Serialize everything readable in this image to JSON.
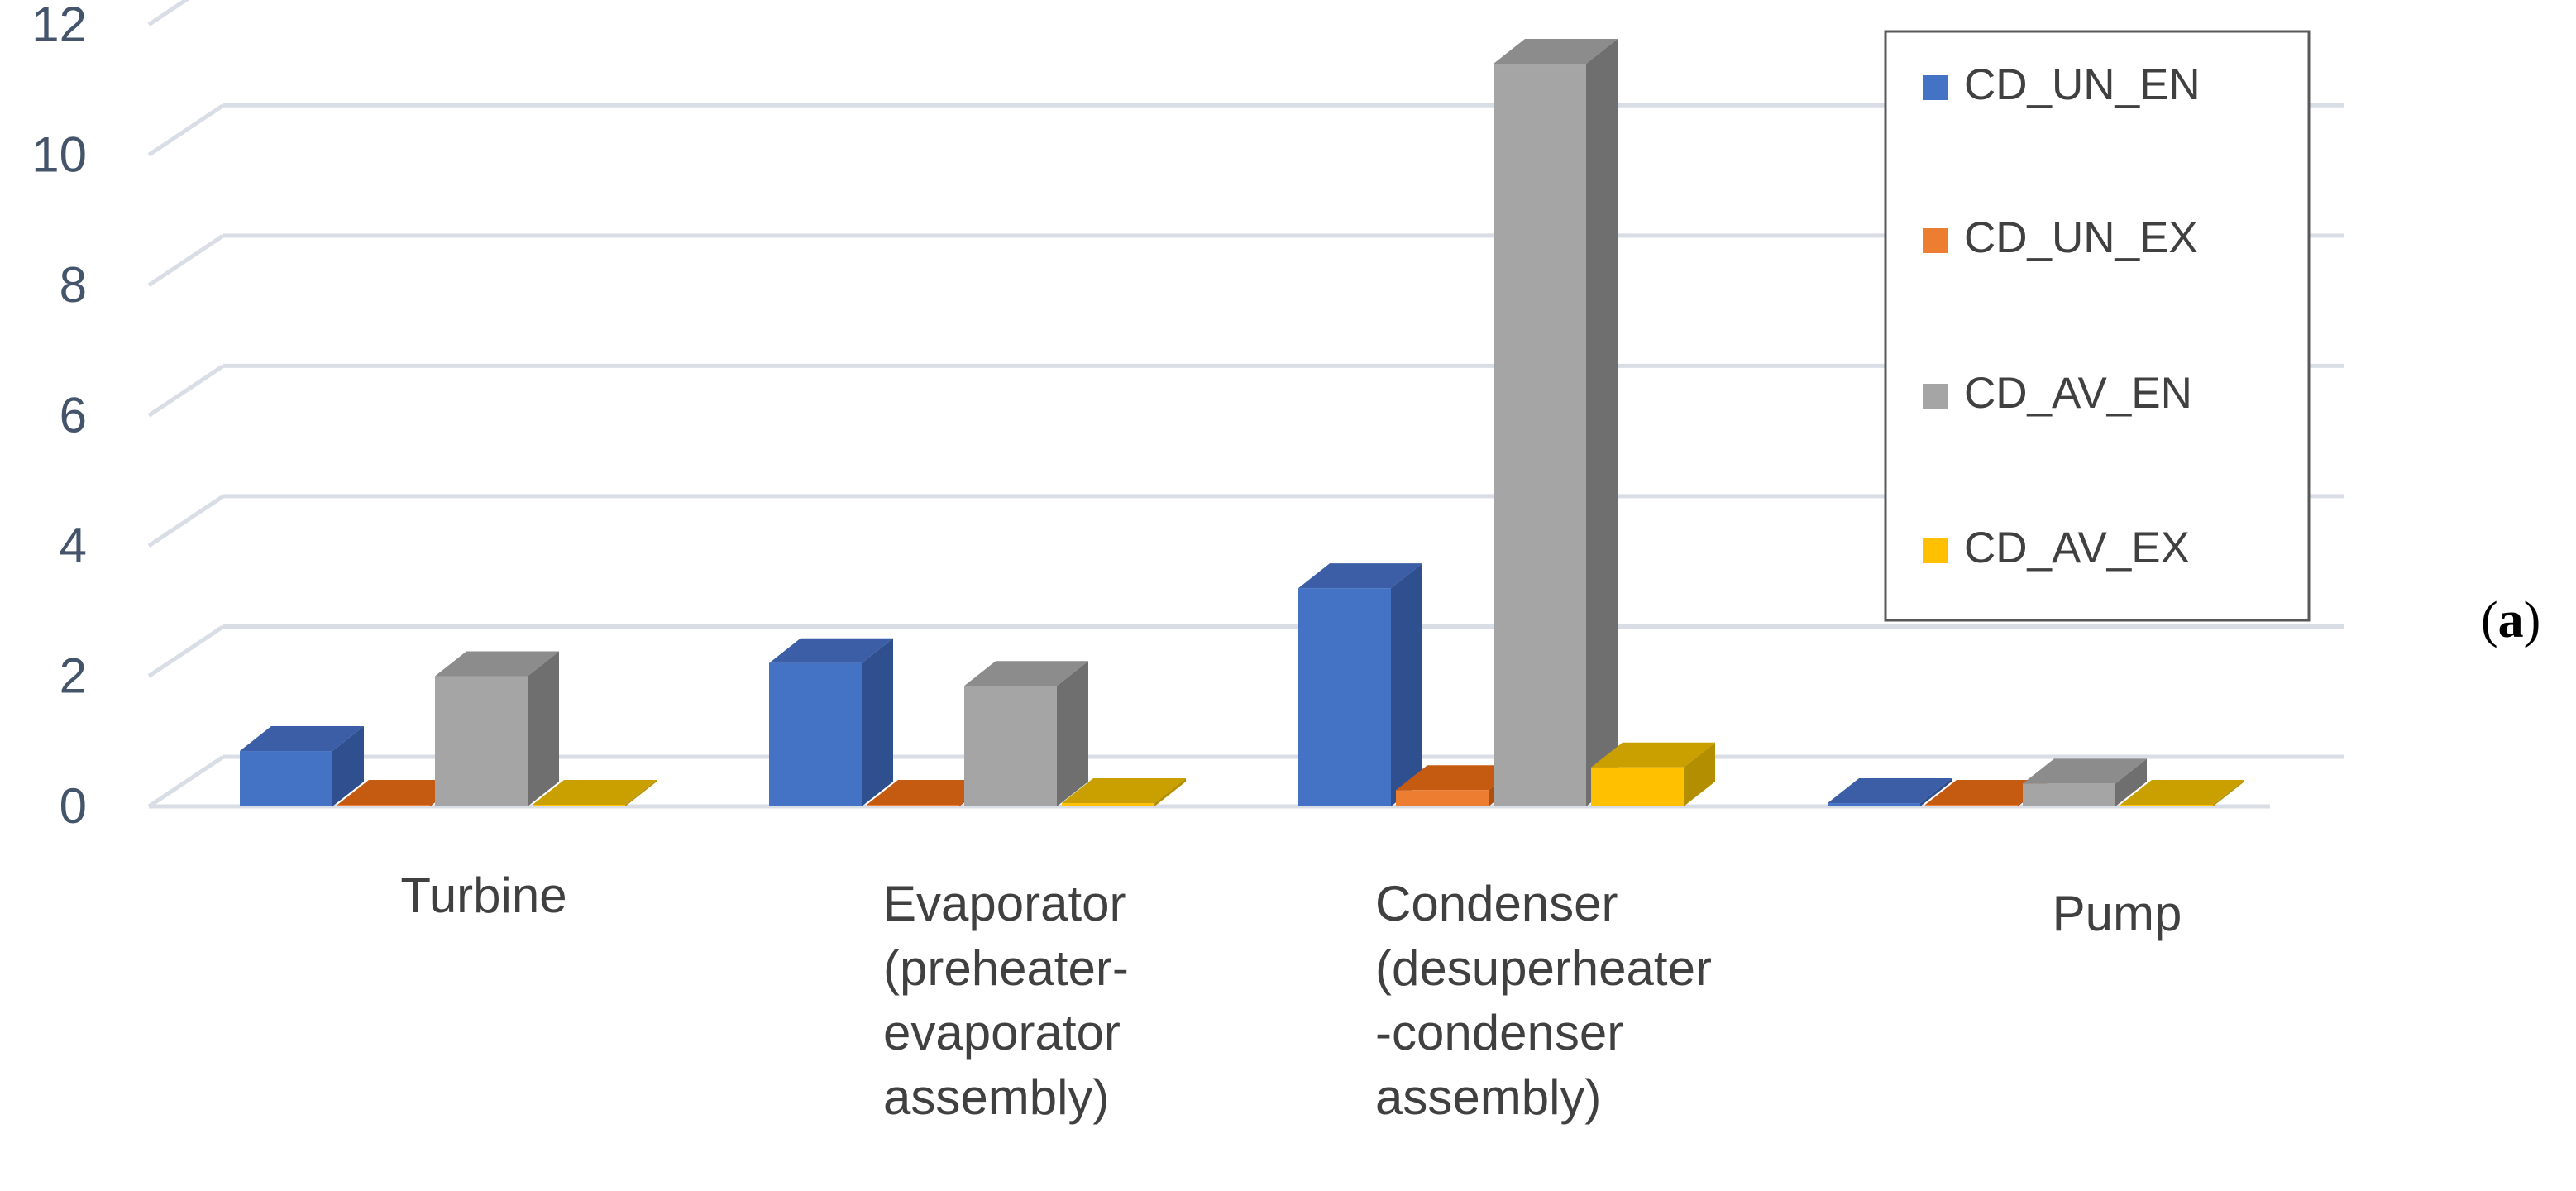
{
  "chart_data": {
    "type": "bar",
    "categories": [
      [
        "Turbine"
      ],
      [
        "Evaporator",
        "(preheater-",
        "evaporator",
        "assembly)"
      ],
      [
        "Condenser",
        "(desuperheater",
        "-condenser",
        "assembly)"
      ],
      [
        "Pump"
      ]
    ],
    "series": [
      {
        "name": "CD_UN_EN",
        "values": [
          0.85,
          2.2,
          3.35,
          0.05
        ]
      },
      {
        "name": "CD_UN_EX",
        "values": [
          0.02,
          0.02,
          0.25,
          0.02
        ]
      },
      {
        "name": "CD_AV_EN",
        "values": [
          2.0,
          1.85,
          11.4,
          0.35
        ]
      },
      {
        "name": "CD_AV_EX",
        "values": [
          0.02,
          0.05,
          0.6,
          0.02
        ]
      }
    ],
    "yticks": [
      "0",
      "2",
      "4",
      "6",
      "8",
      "10",
      "12"
    ],
    "ylim": [
      0,
      12
    ],
    "grid": true,
    "legend_position": "top-right",
    "colors": {
      "CD_UN_EN": {
        "front": "#4472c4",
        "top": "#3b5ea6",
        "side": "#2f4f8f"
      },
      "CD_UN_EX": {
        "front": "#ed7d31",
        "top": "#c55a11",
        "side": "#b04e0f"
      },
      "CD_AV_EN": {
        "front": "#a5a5a5",
        "top": "#8c8c8c",
        "side": "#6f6f6f"
      },
      "CD_AV_EX": {
        "front": "#ffc000",
        "top": "#c9a000",
        "side": "#b38f00"
      }
    },
    "panel_label": {
      "open": "(",
      "letter": "a",
      "close": ")"
    }
  }
}
